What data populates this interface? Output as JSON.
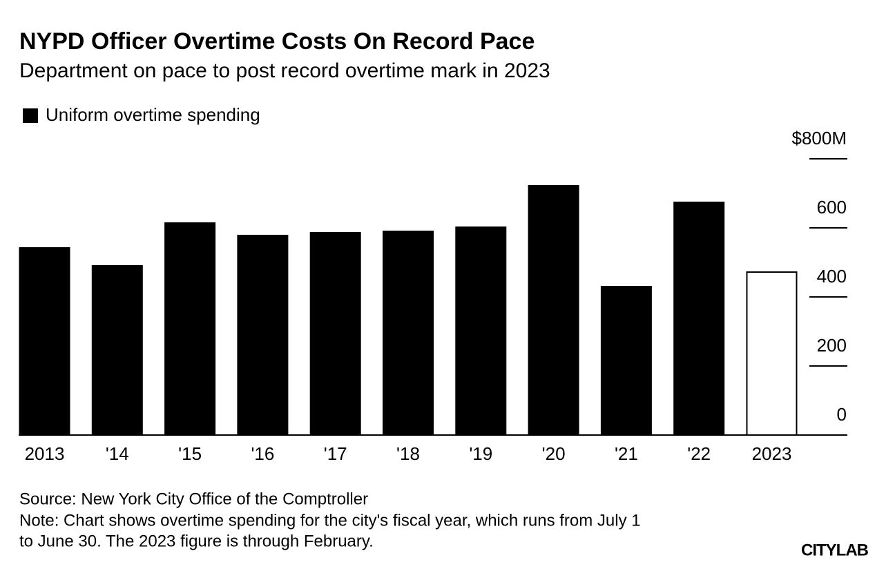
{
  "chart_data": {
    "type": "bar",
    "title": "NYPD Officer Overtime Costs On Record Pace",
    "subtitle": "Department on pace to post record overtime mark in 2023",
    "categories": [
      "2013",
      "'14",
      "'15",
      "'16",
      "'17",
      "'18",
      "'19",
      "'20",
      "'21",
      "'22",
      "2023"
    ],
    "series": [
      {
        "name": "Uniform overtime spending",
        "color": "#000000",
        "values": [
          542,
          490,
          614,
          578,
          586,
          590,
          602,
          722,
          430,
          674,
          472
        ]
      }
    ],
    "bar_colors": [
      "#000000",
      "#000000",
      "#000000",
      "#000000",
      "#000000",
      "#000000",
      "#000000",
      "#000000",
      "#000000",
      "#000000",
      "#ffffff"
    ],
    "ylim": [
      0,
      800
    ],
    "yticks": [
      0,
      200,
      400,
      600,
      {
        "value": 800,
        "label": "$800M"
      }
    ],
    "source": "Source: New York City Office of the Comptroller",
    "note": [
      "Note: Chart shows overtime spending for the city's fiscal year, which runs from July 1",
      "to June 30. The 2023 figure is through February."
    ],
    "brand": "CITYLAB"
  }
}
